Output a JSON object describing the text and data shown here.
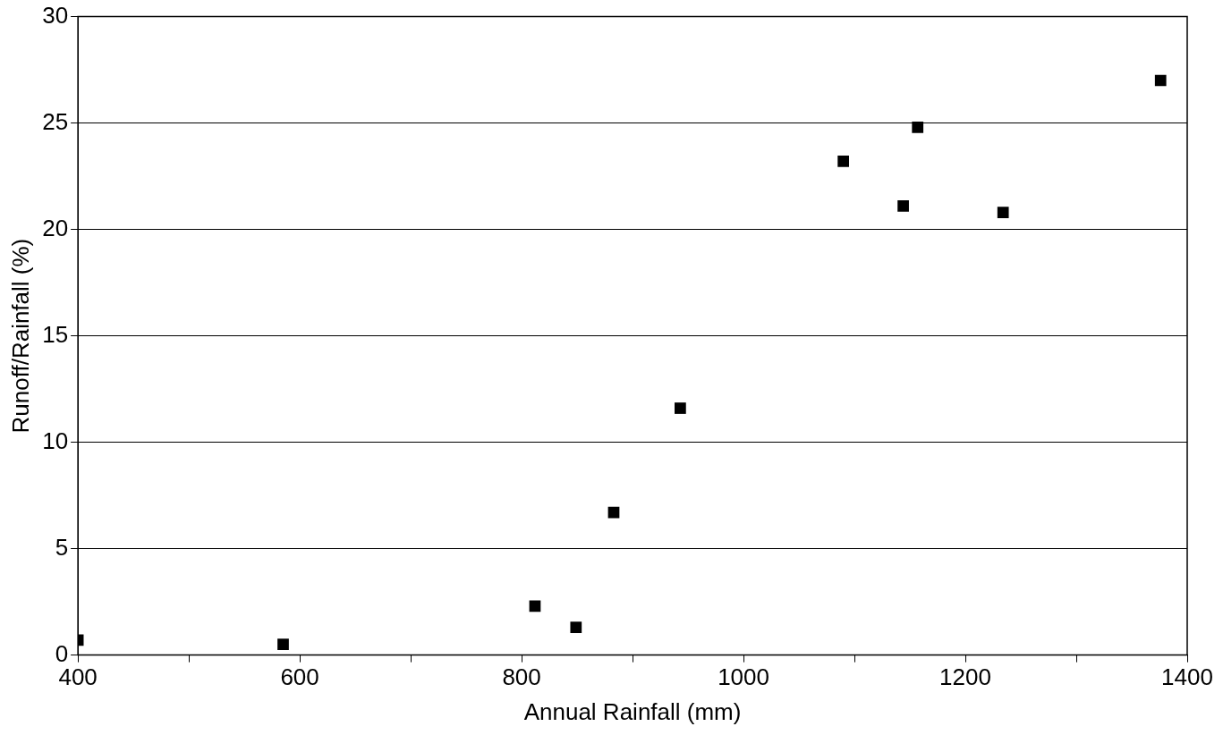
{
  "chart_data": {
    "type": "scatter",
    "xlabel": "Annual Rainfall (mm)",
    "ylabel": "Runoff/Rainfall (%)",
    "x": [
      400,
      585,
      812,
      849,
      883,
      943,
      1090,
      1144,
      1157,
      1234,
      1376
    ],
    "values": [
      0.7,
      0.5,
      2.3,
      1.3,
      6.7,
      11.6,
      23.2,
      21.1,
      24.8,
      20.8,
      27.0
    ],
    "color": "#000000",
    "marker": "square",
    "grid": "y",
    "xlim": [
      400,
      1400
    ],
    "xticks": [
      400,
      {
        "value": 500,
        "label": null
      },
      600,
      {
        "value": 700,
        "label": null
      },
      800,
      {
        "value": 900,
        "label": null
      },
      1000,
      {
        "value": 1100,
        "label": null
      },
      1200,
      {
        "value": 1300,
        "label": null
      },
      1400
    ],
    "ylim": [
      0,
      30
    ],
    "yticks": [
      0,
      5,
      10,
      15,
      20,
      25,
      30
    ]
  }
}
